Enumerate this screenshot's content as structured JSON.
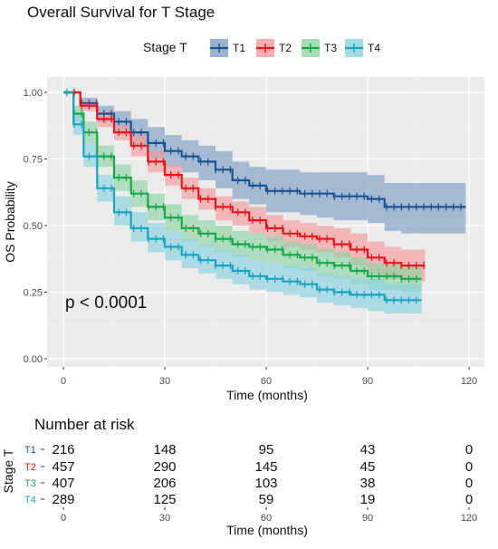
{
  "chart_data": [
    {
      "type": "line",
      "subtype": "kaplan-meier",
      "title": "Overall Survival for T Stage",
      "xlabel": "Time (months)",
      "ylabel": "OS Probability",
      "xlim": [
        0,
        120
      ],
      "ylim": [
        0,
        1
      ],
      "x_ticks": [
        0,
        30,
        60,
        90,
        120
      ],
      "y_ticks": [
        "0.00",
        "0.25",
        "0.50",
        "0.75",
        "1.00"
      ],
      "grid": true,
      "legend": {
        "title": "Stage T",
        "placement": "top",
        "entries": [
          "T1",
          "T2",
          "T3",
          "T4"
        ]
      },
      "annotation": "p < 0.0001",
      "series": [
        {
          "name": "T1",
          "color": "#1a5494",
          "band_color": "#7f9fc4",
          "x": [
            0,
            5,
            10,
            15,
            20,
            25,
            30,
            35,
            40,
            45,
            50,
            55,
            60,
            65,
            70,
            75,
            80,
            85,
            90,
            95,
            100,
            105,
            110,
            119
          ],
          "y": [
            1.0,
            0.96,
            0.92,
            0.89,
            0.85,
            0.81,
            0.78,
            0.76,
            0.74,
            0.71,
            0.67,
            0.65,
            0.63,
            0.63,
            0.62,
            0.62,
            0.61,
            0.61,
            0.6,
            0.57,
            0.57,
            0.57,
            0.57,
            0.57
          ],
          "lower": [
            1.0,
            0.94,
            0.89,
            0.85,
            0.8,
            0.75,
            0.72,
            0.7,
            0.67,
            0.64,
            0.6,
            0.58,
            0.55,
            0.55,
            0.54,
            0.53,
            0.52,
            0.52,
            0.51,
            0.48,
            0.47,
            0.47,
            0.47,
            0.47
          ],
          "upper": [
            1.0,
            0.98,
            0.95,
            0.93,
            0.9,
            0.87,
            0.84,
            0.82,
            0.8,
            0.78,
            0.74,
            0.72,
            0.71,
            0.71,
            0.7,
            0.7,
            0.7,
            0.7,
            0.69,
            0.66,
            0.66,
            0.66,
            0.66,
            0.66
          ]
        },
        {
          "name": "T2",
          "color": "#e8141c",
          "band_color": "#f29a9c",
          "x": [
            0,
            5,
            10,
            15,
            20,
            25,
            30,
            35,
            40,
            45,
            50,
            55,
            60,
            65,
            70,
            75,
            80,
            85,
            90,
            95,
            100,
            107
          ],
          "y": [
            1.0,
            0.95,
            0.9,
            0.85,
            0.8,
            0.74,
            0.69,
            0.64,
            0.6,
            0.57,
            0.55,
            0.52,
            0.49,
            0.47,
            0.46,
            0.45,
            0.43,
            0.41,
            0.38,
            0.36,
            0.35,
            0.35
          ],
          "lower": [
            1.0,
            0.93,
            0.87,
            0.82,
            0.76,
            0.7,
            0.65,
            0.6,
            0.56,
            0.52,
            0.5,
            0.47,
            0.44,
            0.42,
            0.41,
            0.4,
            0.38,
            0.35,
            0.32,
            0.3,
            0.29,
            0.29
          ],
          "upper": [
            1.0,
            0.97,
            0.93,
            0.88,
            0.84,
            0.78,
            0.73,
            0.68,
            0.64,
            0.61,
            0.59,
            0.57,
            0.54,
            0.52,
            0.51,
            0.5,
            0.49,
            0.47,
            0.44,
            0.42,
            0.41,
            0.41
          ]
        },
        {
          "name": "T3",
          "color": "#17a84a",
          "band_color": "#8fd4a4",
          "x": [
            0,
            3,
            6,
            10,
            15,
            20,
            25,
            30,
            35,
            40,
            45,
            50,
            55,
            60,
            65,
            70,
            75,
            80,
            85,
            90,
            95,
            100,
            106
          ],
          "y": [
            1.0,
            0.92,
            0.85,
            0.76,
            0.68,
            0.62,
            0.57,
            0.53,
            0.49,
            0.47,
            0.45,
            0.43,
            0.42,
            0.41,
            0.39,
            0.38,
            0.36,
            0.35,
            0.33,
            0.31,
            0.31,
            0.3,
            0.3
          ],
          "lower": [
            1.0,
            0.89,
            0.81,
            0.72,
            0.63,
            0.57,
            0.52,
            0.48,
            0.44,
            0.42,
            0.4,
            0.38,
            0.37,
            0.36,
            0.34,
            0.33,
            0.31,
            0.3,
            0.28,
            0.26,
            0.26,
            0.25,
            0.25
          ],
          "upper": [
            1.0,
            0.95,
            0.89,
            0.8,
            0.73,
            0.67,
            0.62,
            0.58,
            0.54,
            0.52,
            0.5,
            0.48,
            0.47,
            0.46,
            0.44,
            0.43,
            0.41,
            0.4,
            0.38,
            0.36,
            0.36,
            0.35,
            0.35
          ]
        },
        {
          "name": "T4",
          "color": "#1ba3c0",
          "band_color": "#8ad2e0",
          "x": [
            0,
            3,
            6,
            10,
            15,
            20,
            25,
            30,
            35,
            40,
            45,
            50,
            55,
            60,
            65,
            70,
            75,
            80,
            85,
            90,
            95,
            100,
            106
          ],
          "y": [
            1.0,
            0.88,
            0.76,
            0.64,
            0.55,
            0.49,
            0.45,
            0.42,
            0.39,
            0.37,
            0.35,
            0.33,
            0.31,
            0.3,
            0.29,
            0.28,
            0.26,
            0.25,
            0.24,
            0.24,
            0.22,
            0.22,
            0.22
          ],
          "lower": [
            1.0,
            0.84,
            0.72,
            0.59,
            0.5,
            0.44,
            0.4,
            0.37,
            0.34,
            0.32,
            0.3,
            0.28,
            0.26,
            0.25,
            0.24,
            0.23,
            0.21,
            0.2,
            0.19,
            0.18,
            0.17,
            0.17,
            0.17
          ],
          "upper": [
            1.0,
            0.92,
            0.81,
            0.69,
            0.61,
            0.55,
            0.51,
            0.48,
            0.45,
            0.43,
            0.41,
            0.39,
            0.37,
            0.36,
            0.35,
            0.34,
            0.32,
            0.31,
            0.3,
            0.3,
            0.28,
            0.28,
            0.28
          ]
        }
      ]
    },
    {
      "type": "table",
      "title": "Number at risk",
      "xlabel": "Time (months)",
      "ylabel": "Stage T",
      "x_ticks": [
        0,
        30,
        60,
        90,
        120
      ],
      "rows": [
        {
          "label": "T1",
          "color": "#1a5494",
          "values": [
            216,
            148,
            95,
            43,
            0
          ]
        },
        {
          "label": "T2",
          "color": "#e8141c",
          "values": [
            457,
            290,
            145,
            45,
            0
          ]
        },
        {
          "label": "T3",
          "color": "#17a84a",
          "values": [
            407,
            206,
            103,
            38,
            0
          ]
        },
        {
          "label": "T4",
          "color": "#1ba3c0",
          "values": [
            289,
            125,
            59,
            19,
            0
          ]
        }
      ]
    }
  ]
}
